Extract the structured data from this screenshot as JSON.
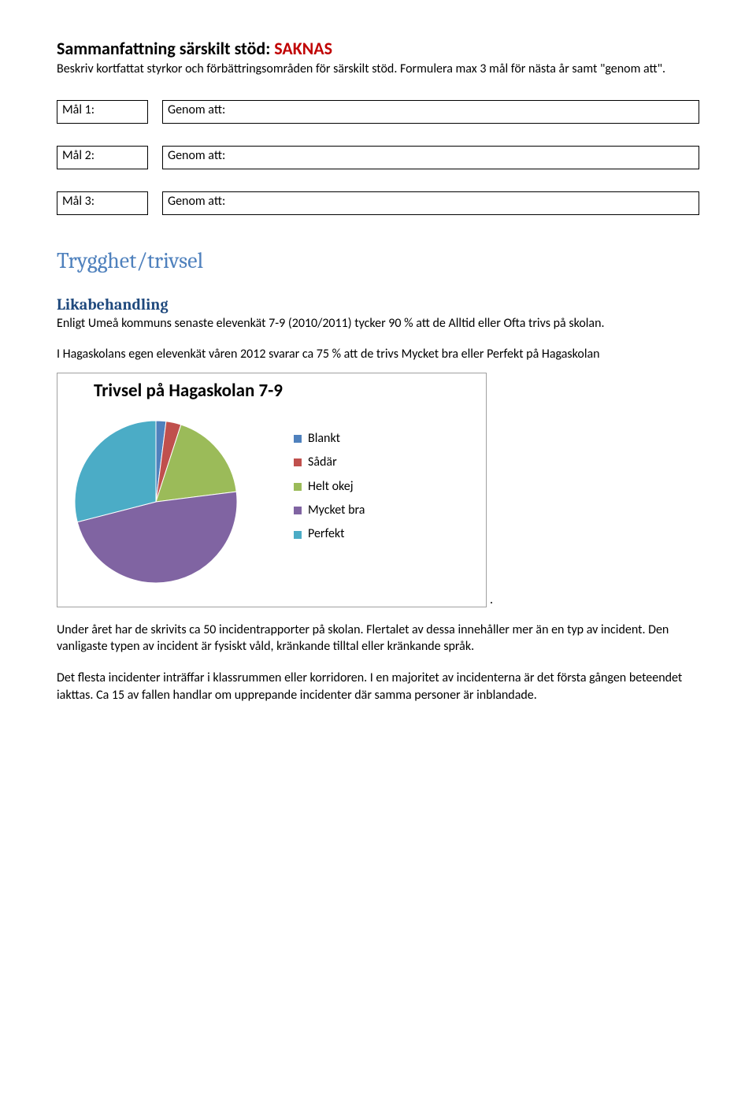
{
  "heading": {
    "prefix": "Sammanfattning särskilt stöd: ",
    "saknas": "SAKNAS",
    "colors": {
      "saknas": "#c00000"
    }
  },
  "heading_desc": "Beskriv kortfattat styrkor och förbättringsområden för särskilt stöd. Formulera max 3 mål för nästa år samt \"genom att\".",
  "goals": [
    {
      "left": "Mål 1:",
      "right": "Genom att:"
    },
    {
      "left": "Mål 2:",
      "right": "Genom att:"
    },
    {
      "left": "Mål 3:",
      "right": "Genom att:"
    }
  ],
  "section_title": "Trygghet/trivsel",
  "subheading": "Likabehandling",
  "para1": "Enligt Umeå kommuns senaste elevenkät 7-9 (2010/2011) tycker 90 % att de Alltid eller Ofta trivs på skolan.",
  "para2": "I Hagaskolans egen elevenkät våren 2012 svarar ca 75 % att de trivs Mycket bra eller Perfekt på Hagaskolan",
  "chart": {
    "type": "pie",
    "title": "Trivsel på Hagaskolan 7-9",
    "slices": [
      {
        "label": "Blankt",
        "value": 2,
        "color": "#4f81bd"
      },
      {
        "label": "Sådär",
        "value": 3,
        "color": "#c0504d"
      },
      {
        "label": "Helt okej",
        "value": 18,
        "color": "#9bbb59"
      },
      {
        "label": "Mycket bra",
        "value": 48,
        "color": "#8064a2"
      },
      {
        "label": "Perfekt",
        "value": 29,
        "color": "#4bacc6"
      }
    ],
    "title_fontsize": 23,
    "legend_fontsize": 16,
    "border_color": "#a0a0a0",
    "background_color": "#ffffff",
    "swatch_size": 10
  },
  "trailing_period": ".",
  "para3": "Under året har de skrivits ca 50 incidentrapporter på skolan. Flertalet av dessa innehåller mer än en typ av incident. Den vanligaste typen av incident är fysiskt våld, kränkande tilltal eller kränkande språk.",
  "para4": "Det flesta incidenter inträffar i klassrummen eller korridoren. I en majoritet av incidenterna är det första gången beteendet iakttas. Ca 15 av fallen handlar om upprepande incidenter där samma personer är inblandade."
}
